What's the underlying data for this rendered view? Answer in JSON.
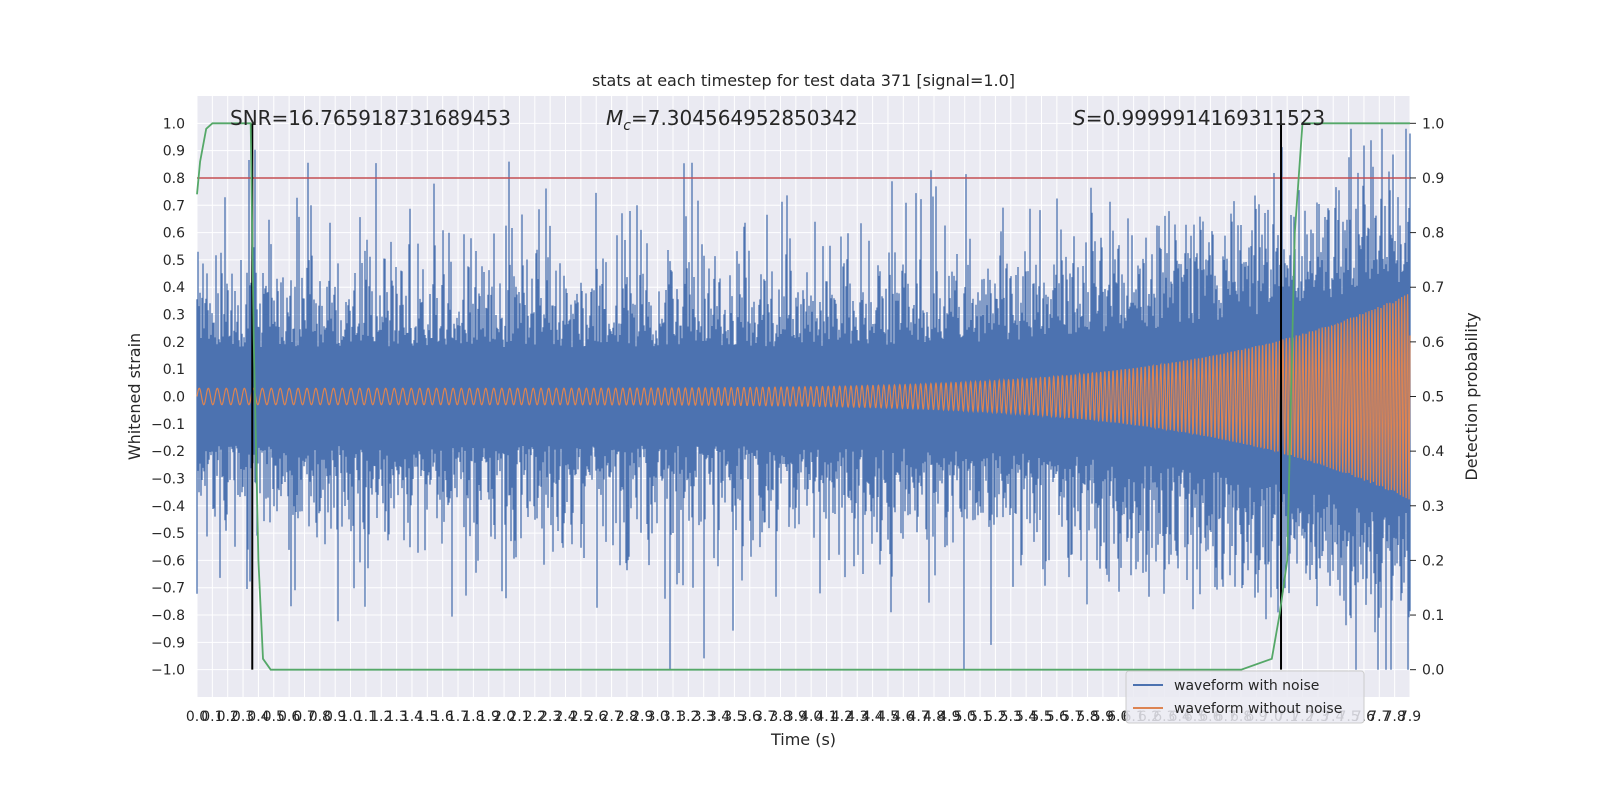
{
  "chart_data": {
    "type": "line",
    "title": "stats at each timestep for test data 371 [signal=1.0]",
    "xlabel": "Time (s)",
    "ylabel": "Whitened strain",
    "y2label": "Detection probability",
    "xlim": [
      0.0,
      7.9
    ],
    "ylim": [
      -1.1,
      1.1
    ],
    "y2lim": [
      -0.05,
      1.05
    ],
    "x_ticks": [
      "0.0",
      "0.1",
      "0.2",
      "0.3",
      "0.4",
      "0.5",
      "0.6",
      "0.7",
      "0.8",
      "0.9",
      "1.0",
      "1.1",
      "1.2",
      "1.3",
      "1.4",
      "1.5",
      "1.6",
      "1.7",
      "1.8",
      "1.9",
      "2.0",
      "2.1",
      "2.2",
      "2.3",
      "2.4",
      "2.5",
      "2.6",
      "2.7",
      "2.8",
      "2.9",
      "3.0",
      "3.1",
      "3.2",
      "3.3",
      "3.4",
      "3.5",
      "3.6",
      "3.7",
      "3.8",
      "3.9",
      "4.0",
      "4.1",
      "4.2",
      "4.3",
      "4.4",
      "4.5",
      "4.6",
      "4.7",
      "4.8",
      "4.9",
      "5.0",
      "5.1",
      "5.2",
      "5.3",
      "5.4",
      "5.5",
      "5.6",
      "5.7",
      "5.8",
      "5.9",
      "6.0",
      "6.1",
      "6.2",
      "6.3",
      "6.4",
      "6.5",
      "6.6",
      "6.7",
      "6.8",
      "6.9",
      "7.0",
      "7.1",
      "7.2",
      "7.3",
      "7.4",
      "7.5",
      "7.6",
      "7.7",
      "7.8",
      "7.9"
    ],
    "y_ticks": [
      "1.0",
      "0.9",
      "0.8",
      "0.7",
      "0.6",
      "0.5",
      "0.4",
      "0.3",
      "0.2",
      "0.1",
      "0.0",
      "−0.1",
      "−0.2",
      "−0.3",
      "−0.4",
      "−0.5",
      "−0.6",
      "−0.7",
      "−0.8",
      "−0.9",
      "−1.0"
    ],
    "y2_ticks": [
      "1.0",
      "0.9",
      "0.8",
      "0.7",
      "0.6",
      "0.5",
      "0.4",
      "0.3",
      "0.2",
      "0.1",
      "0.0"
    ],
    "grid": true,
    "legend_position": "bottom-right",
    "annotations": {
      "snr": "SNR=16.765918731689453",
      "mc_symbol": "M",
      "mc_sub": "c",
      "mc_value": "=7.304564952850342",
      "s_symbol": "S",
      "s_value": "=0.9999914169311523"
    },
    "series": [
      {
        "name": "waveform with noise",
        "color": "#4c72b0",
        "amplitude": 0.4,
        "peak": 0.98,
        "trough": -1.0
      },
      {
        "name": "waveform without noise",
        "color": "#dd8452",
        "amplitude_start": 0.03,
        "amplitude_end": 0.38
      },
      {
        "color": "#55a868",
        "x": [
          0.0,
          0.02,
          0.06,
          0.1,
          0.2,
          0.35,
          0.37,
          0.4,
          0.43,
          0.48,
          1.0,
          3.0,
          5.0,
          6.8,
          7.0,
          7.05,
          7.1,
          7.15,
          7.2,
          7.5,
          7.9
        ],
        "y": [
          0.87,
          0.93,
          0.99,
          1.0,
          1.0,
          1.0,
          0.6,
          0.2,
          0.02,
          0.0,
          0.0,
          0.0,
          0.0,
          0.0,
          0.02,
          0.1,
          0.2,
          0.8,
          1.0,
          1.0,
          1.0
        ]
      }
    ],
    "threshold_line": {
      "y": 0.9,
      "color": "#c44e52"
    },
    "vertical_lines": [
      {
        "x": 0.36
      },
      {
        "x": 7.06
      }
    ]
  }
}
